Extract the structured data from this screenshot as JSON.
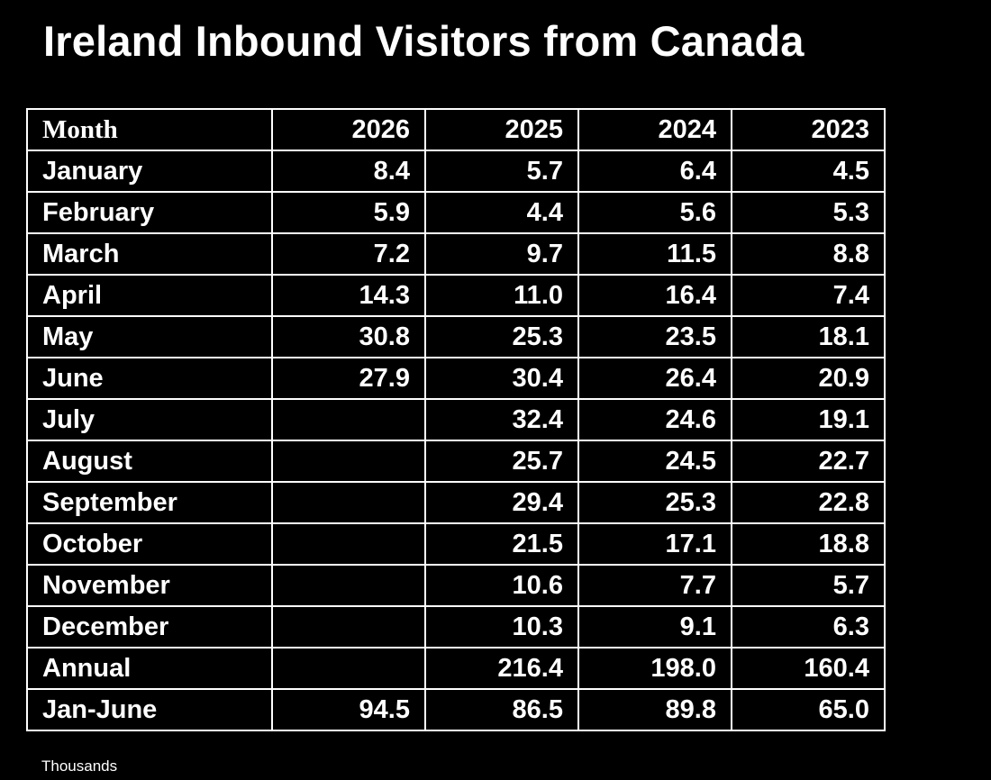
{
  "title": "Ireland Inbound Visitors from Canada",
  "footnote": "Thousands",
  "colors": {
    "background": "#000000",
    "text": "#ffffff",
    "grid": "#ffffff"
  },
  "chart_data": {
    "type": "table",
    "title": "Ireland Inbound Visitors from Canada",
    "unit": "Thousands",
    "header": [
      "Month",
      "2026",
      "2025",
      "2024",
      "2023"
    ],
    "rows": [
      [
        "January",
        "8.4",
        "5.7",
        "6.4",
        "4.5"
      ],
      [
        "February",
        "5.9",
        "4.4",
        "5.6",
        "5.3"
      ],
      [
        "March",
        "7.2",
        "9.7",
        "11.5",
        "8.8"
      ],
      [
        "April",
        "14.3",
        "11.0",
        "16.4",
        "7.4"
      ],
      [
        "May",
        "30.8",
        "25.3",
        "23.5",
        "18.1"
      ],
      [
        "June",
        "27.9",
        "30.4",
        "26.4",
        "20.9"
      ],
      [
        "July",
        "",
        "32.4",
        "24.6",
        "19.1"
      ],
      [
        "August",
        "",
        "25.7",
        "24.5",
        "22.7"
      ],
      [
        "September",
        "",
        "29.4",
        "25.3",
        "22.8"
      ],
      [
        "October",
        "",
        "21.5",
        "17.1",
        "18.8"
      ],
      [
        "November",
        "",
        "10.6",
        "7.7",
        "5.7"
      ],
      [
        "December",
        "",
        "10.3",
        "9.1",
        "6.3"
      ],
      [
        "Annual",
        "",
        "216.4",
        "198.0",
        "160.4"
      ],
      [
        "Jan-June",
        "94.5",
        "86.5",
        "89.8",
        "65.0"
      ]
    ]
  }
}
